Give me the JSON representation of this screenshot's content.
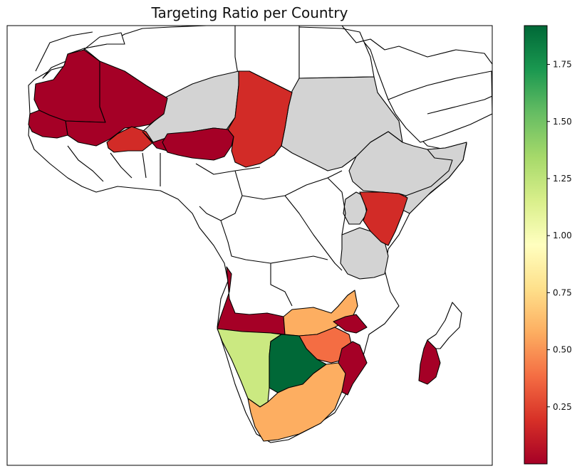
{
  "title": "Targeting Ratio per Country",
  "colorbar": {
    "colormap": "RdYlGn",
    "vmin": 0.0,
    "vmax": 1.92,
    "ticks": [
      "0.25",
      "0.50",
      "0.75",
      "1.00",
      "1.25",
      "1.50",
      "1.75"
    ],
    "stops": [
      "#a50026",
      "#d73027",
      "#f46d43",
      "#fdae61",
      "#fee08b",
      "#ffffbf",
      "#d9ef8b",
      "#a6d96a",
      "#66bd63",
      "#1a9850",
      "#006837"
    ]
  },
  "colors": {
    "no_data": "#d3d3d3",
    "background": "#ffffff",
    "border": "#000000"
  },
  "countries": [
    {
      "id": "mauritania",
      "value": 0.02,
      "color": "#a50026"
    },
    {
      "id": "mali",
      "value": 0.02,
      "color": "#a50026"
    },
    {
      "id": "senegal",
      "value": 0.02,
      "color": "#a50026"
    },
    {
      "id": "burkina-faso",
      "value": 0.12,
      "color": "#d22b27"
    },
    {
      "id": "niger",
      "value": 0.05,
      "color": "#a50026"
    },
    {
      "id": "nigeria",
      "value": 0.02,
      "color": "#a50026"
    },
    {
      "id": "chad",
      "value": 0.12,
      "color": "#d22b27"
    },
    {
      "id": "kenya",
      "value": 0.12,
      "color": "#d22b27"
    },
    {
      "id": "angola",
      "value": 0.02,
      "color": "#a50026"
    },
    {
      "id": "zambia",
      "value": 0.55,
      "color": "#fdae61"
    },
    {
      "id": "malawi",
      "value": 0.02,
      "color": "#a50026"
    },
    {
      "id": "zimbabwe",
      "value": 0.35,
      "color": "#f46d43"
    },
    {
      "id": "mozambique",
      "value": 0.02,
      "color": "#a50026"
    },
    {
      "id": "namibia",
      "value": 1.3,
      "color": "#cbe981"
    },
    {
      "id": "botswana",
      "value": 1.92,
      "color": "#006837"
    },
    {
      "id": "south-africa",
      "value": 0.55,
      "color": "#fdae61"
    },
    {
      "id": "madagascar",
      "value": 0.02,
      "color": "#a50026"
    },
    {
      "id": "algeria",
      "value": null,
      "color": "#d3d3d3"
    },
    {
      "id": "sudan",
      "value": null,
      "color": "#d3d3d3"
    },
    {
      "id": "ethiopia",
      "value": null,
      "color": "#d3d3d3"
    },
    {
      "id": "somalia",
      "value": null,
      "color": "#d3d3d3"
    },
    {
      "id": "tanzania",
      "value": null,
      "color": "#d3d3d3"
    },
    {
      "id": "uganda",
      "value": null,
      "color": "#d3d3d3"
    }
  ]
}
